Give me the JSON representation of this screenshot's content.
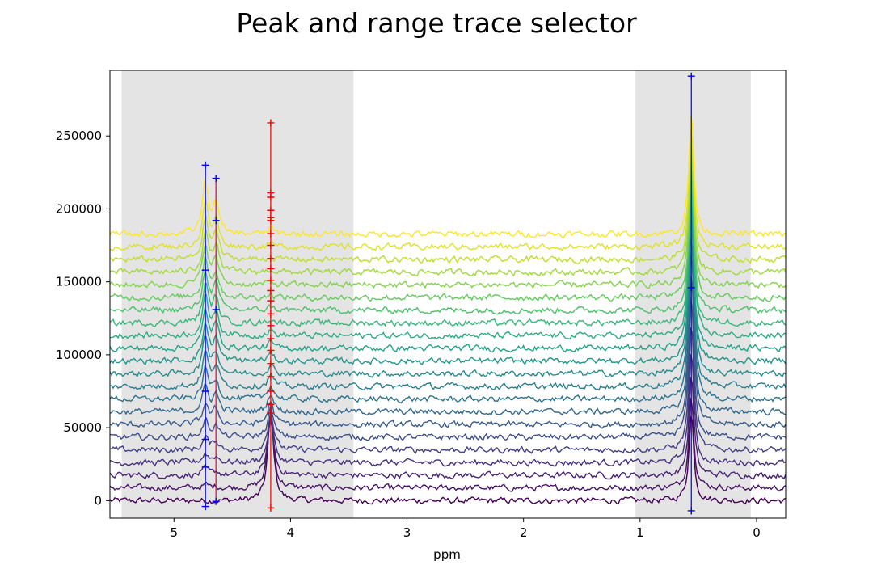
{
  "chart_data": {
    "type": "line",
    "title": "Peak and range trace selector",
    "xlabel": "ppm",
    "ylabel": "",
    "x_inverted": true,
    "xlim": [
      5.55,
      -0.25
    ],
    "ylim": [
      -12000,
      295000
    ],
    "x_ticks": [
      5,
      4,
      3,
      2,
      1,
      0
    ],
    "x_tick_labels": [
      "5",
      "4",
      "3",
      "2",
      "1",
      "0"
    ],
    "y_ticks": [
      0,
      50000,
      100000,
      150000,
      200000,
      250000
    ],
    "y_tick_labels": [
      "0",
      "50000",
      "100000",
      "150000",
      "200000",
      "250000"
    ],
    "grid": false,
    "legend": "none",
    "colormap": "viridis",
    "series_count": 22,
    "series_offset_step": 8700,
    "noise_amplitude": 1800,
    "peaks": [
      {
        "ppm": 4.73,
        "heights": [
          0,
          2000,
          4000,
          6000,
          8000,
          11000,
          14000,
          17000,
          20000,
          23000,
          25000,
          25000,
          25500,
          26000,
          26000,
          26500,
          27000,
          27500,
          27000,
          28000,
          30000,
          36000
        ],
        "width": 0.03
      },
      {
        "ppm": 4.64,
        "heights": [
          0,
          1000,
          2500,
          4000,
          6000,
          8000,
          10000,
          12000,
          13000,
          14000,
          15000,
          15000,
          16000,
          16000,
          16500,
          17000,
          17000,
          17500,
          18000,
          18500,
          18000,
          20000
        ],
        "width": 0.03
      },
      {
        "ppm": 4.17,
        "heights": [
          62000,
          50000,
          40000,
          32000,
          26000,
          20000,
          16000,
          13000,
          10000,
          8000,
          6000,
          5000,
          4000,
          3500,
          3000,
          2500,
          2500,
          2000,
          2000,
          2000,
          2000,
          4000
        ],
        "width": 0.03
      },
      {
        "ppm": 0.56,
        "heights": [
          60000,
          64000,
          70000,
          78000,
          88000,
          98000,
          106000,
          112000,
          116000,
          118000,
          115000,
          110000,
          105000,
          100000,
          96000,
          92000,
          88000,
          86000,
          84000,
          82000,
          82000,
          84000
        ],
        "width": 0.025
      }
    ],
    "shaded_ranges": [
      {
        "from": 5.45,
        "to": 3.46,
        "color": "#e4e4e4"
      },
      {
        "from": 1.04,
        "to": 0.05,
        "color": "#e4e4e4"
      }
    ],
    "markers": [
      {
        "ppm": 4.73,
        "color": "#0000ee",
        "y_values": [
          -4000,
          23000,
          42000,
          75000,
          158000,
          230000
        ]
      },
      {
        "ppm": 4.64,
        "color": "#0000ee",
        "y_values": [
          -500,
          131000,
          192000,
          221000
        ]
      },
      {
        "ppm": 4.17,
        "color": "#ee0000",
        "y_values": [
          -5000,
          60000,
          66000,
          75000,
          85000,
          94000,
          103000,
          111000,
          120000,
          128000,
          137000,
          144000,
          151000,
          159000,
          166000,
          175000,
          183000,
          192000,
          194000,
          199000,
          208000,
          211000,
          259000
        ]
      },
      {
        "ppm": 0.56,
        "color": "#0000ee",
        "y_values": [
          -7000,
          146000,
          291000
        ]
      }
    ],
    "range_lines": [
      {
        "ppm": 4.73,
        "color": "#0000ee",
        "from": -4000,
        "to": 230000
      },
      {
        "ppm": 4.64,
        "color": "#e0003c",
        "from": -500,
        "to": 221000
      },
      {
        "ppm": 4.17,
        "color": "#ee0000",
        "from": -5000,
        "to": 259000
      },
      {
        "ppm": 0.56,
        "color": "#0000ee",
        "from": -7000,
        "to": 291000
      }
    ]
  }
}
